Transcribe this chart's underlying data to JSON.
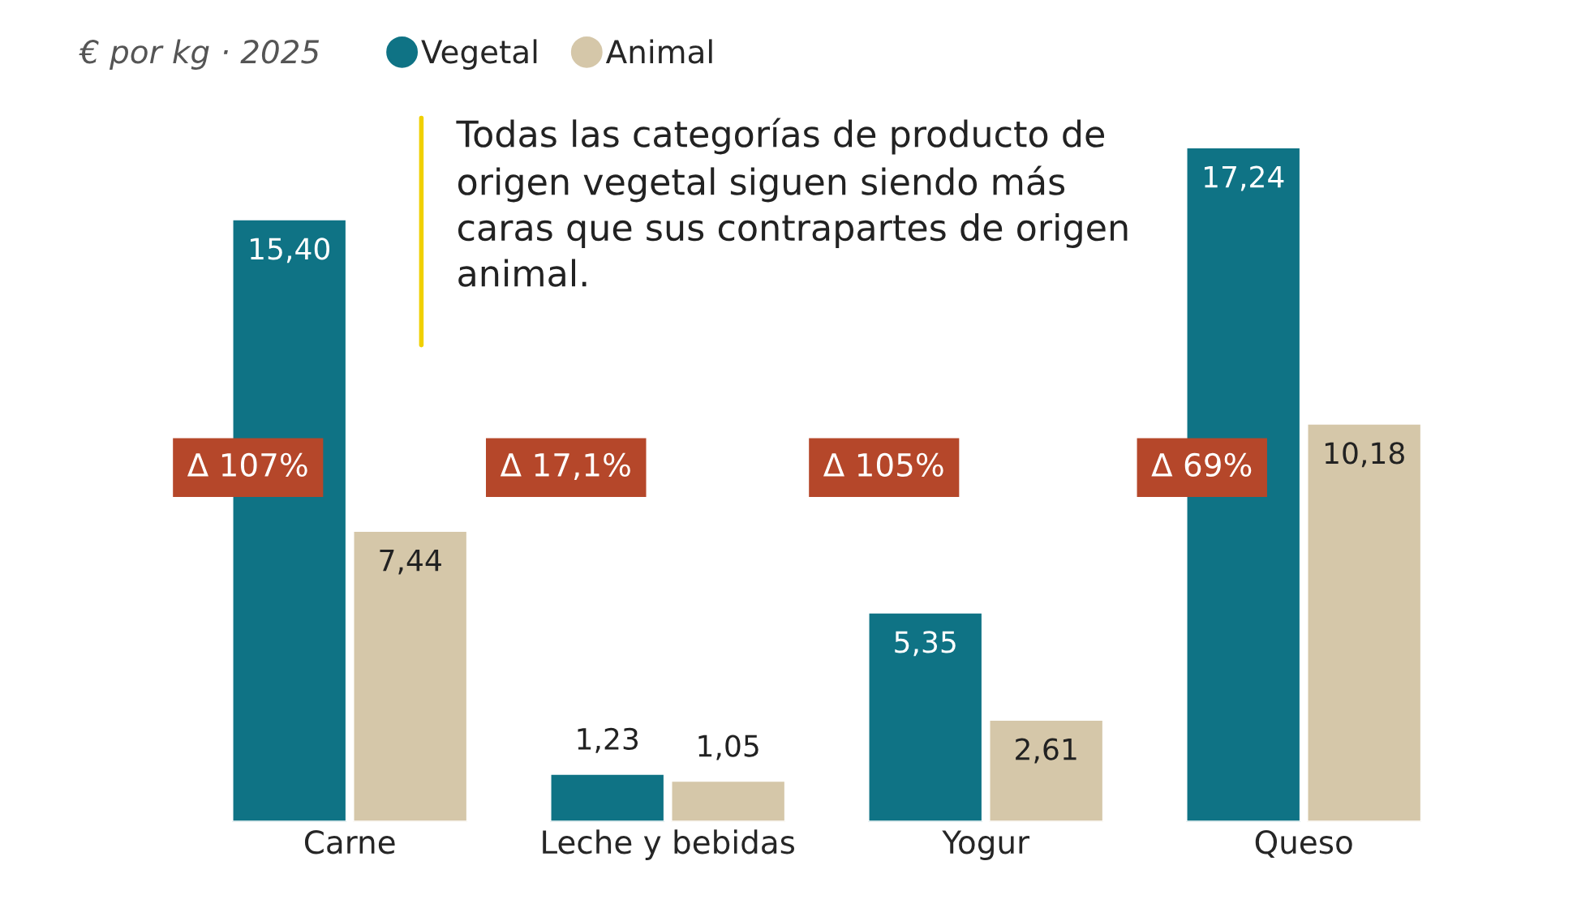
{
  "chart_data": {
    "type": "bar",
    "subtitle": "€ por kg · 2025",
    "categories": [
      "Carne",
      "Leche y bebidas",
      "Yogur",
      "Queso"
    ],
    "series": [
      {
        "name": "Vegetal",
        "color": "#0f7385",
        "values": [
          15.4,
          1.23,
          5.35,
          17.24
        ],
        "value_labels": [
          "15,40",
          "1,23",
          "5,35",
          "17,24"
        ]
      },
      {
        "name": "Animal",
        "color": "#d5c7a9",
        "values": [
          7.44,
          1.05,
          2.61,
          10.18
        ],
        "value_labels": [
          "7,44",
          "1,05",
          "2,61",
          "10,18"
        ]
      }
    ],
    "annotations": [
      "Todas las categorías de producto de origen vegetal siguen siendo más caras que sus contrapartes de origen animal.",
      "Δ 107%",
      "Δ 17,1%",
      "Δ 105%",
      "Δ 69%"
    ],
    "legend": "top left",
    "grid": false,
    "tick_labels": "x"
  }
}
